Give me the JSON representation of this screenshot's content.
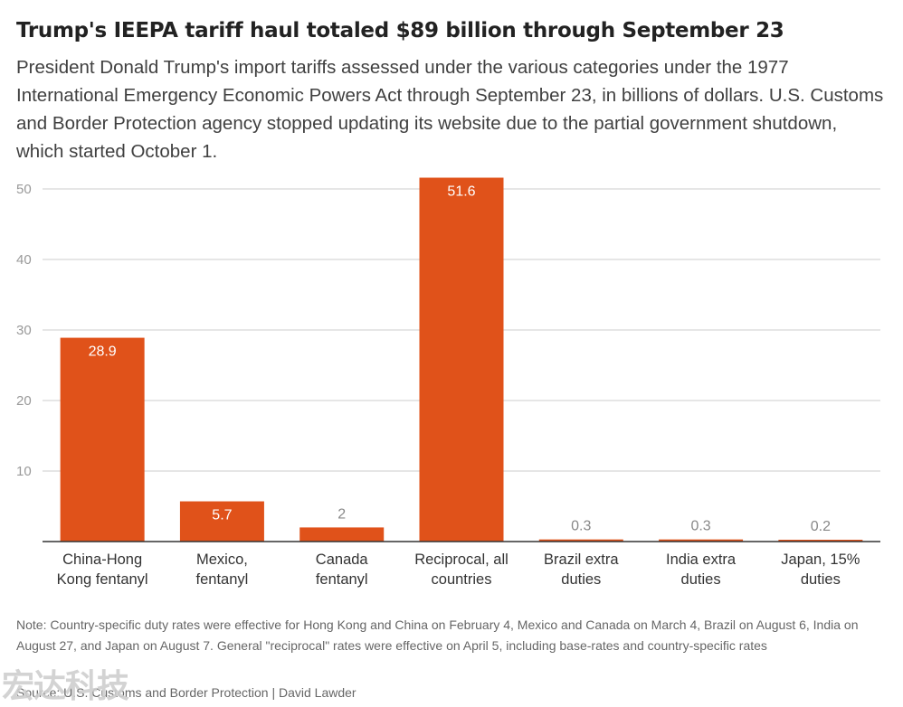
{
  "title": "Trump's IEEPA tariff haul totaled $89 billion through September 23",
  "subtitle": "President Donald Trump's import tariffs assessed under the various categories under the 1977 International Emergency Economic Powers Act through September 23, in billions of dollars. U.S. Customs and Border Protection agency stopped updating its website due to the partial government shutdown, which started October 1.",
  "note": "Note: Country-specific duty rates were effective for Hong Kong and China on February 4, Mexico and Canada on March 4, Brazil on August 6, India on August 27, and Japan on August 7. General \"reciprocal\" rates were effective on April 5, including base-rates and country-specific rates",
  "source": "Source: U.S. Customs and Border Protection | David Lawder",
  "watermark": "宏达科技",
  "colors": {
    "bar": "#e0521a",
    "grid": "#cccccc",
    "axis": "#333333",
    "label_inside": "#ffffff",
    "label_outside": "#888888"
  },
  "chart_data": {
    "type": "bar",
    "title": "Trump's IEEPA tariff haul totaled $89 billion through September 23",
    "xlabel": "",
    "ylabel": "",
    "ylim": [
      0,
      50
    ],
    "yticks": [
      10,
      20,
      30,
      40,
      50
    ],
    "grid": true,
    "categories": [
      [
        "China-Hong",
        "Kong fentanyl"
      ],
      [
        "Mexico,",
        "fentanyl"
      ],
      [
        "Canada",
        "fentanyl"
      ],
      [
        "Reciprocal, all",
        "countries"
      ],
      [
        "Brazil extra",
        "duties"
      ],
      [
        "India extra",
        "duties"
      ],
      [
        "Japan, 15%",
        "duties"
      ]
    ],
    "values": [
      28.9,
      5.7,
      2,
      51.6,
      0.3,
      0.3,
      0.2
    ],
    "value_labels": [
      "28.9",
      "5.7",
      "2",
      "51.6",
      "0.3",
      "0.3",
      "0.2"
    ]
  }
}
